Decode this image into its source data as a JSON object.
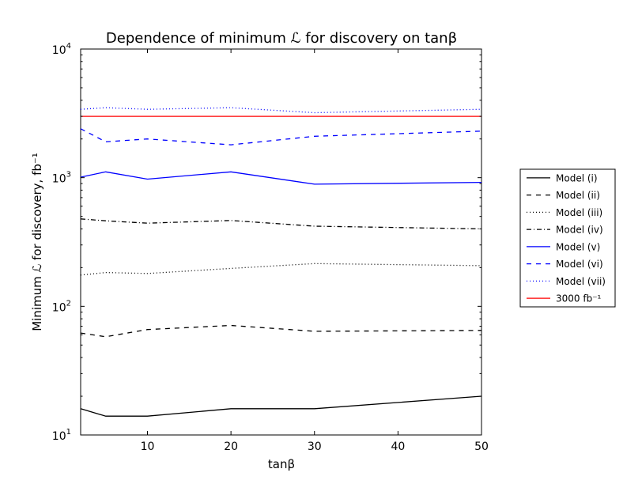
{
  "chart_data": {
    "type": "line",
    "title": "Dependence of minimum ℒ for discovery on tanβ",
    "xlabel": "tanβ",
    "ylabel": "Minimum ℒ for discovery, fb⁻¹",
    "xlim": [
      2,
      50
    ],
    "ylim": [
      10,
      10000
    ],
    "yscale": "log",
    "xticks": [
      10,
      20,
      30,
      40,
      50
    ],
    "yticks": [
      {
        "value": 10,
        "base": "10",
        "exp": "1"
      },
      {
        "value": 100,
        "base": "10",
        "exp": "2"
      },
      {
        "value": 1000,
        "base": "10",
        "exp": "3"
      },
      {
        "value": 10000,
        "base": "10",
        "exp": "4"
      }
    ],
    "legend_position": "right, outside plot",
    "series": [
      {
        "name": "Model (i)",
        "color": "#000000",
        "dash": "solid",
        "x": [
          2,
          5,
          10,
          20,
          30,
          50
        ],
        "y": [
          16,
          14,
          14,
          16,
          16,
          20
        ]
      },
      {
        "name": "Model (ii)",
        "color": "#000000",
        "dash": "dashed",
        "x": [
          2,
          5,
          10,
          20,
          30,
          50
        ],
        "y": [
          62,
          58,
          66,
          71,
          64,
          65
        ]
      },
      {
        "name": "Model (iii)",
        "color": "#000000",
        "dash": "dotted",
        "x": [
          2,
          5,
          10,
          20,
          30,
          50
        ],
        "y": [
          175,
          183,
          180,
          197,
          215,
          207
        ]
      },
      {
        "name": "Model (iv)",
        "color": "#000000",
        "dash": "dashdot",
        "x": [
          2,
          5,
          10,
          20,
          30,
          50
        ],
        "y": [
          478,
          462,
          443,
          465,
          420,
          400
        ]
      },
      {
        "name": "Model (v)",
        "color": "#0000ff",
        "dash": "solid",
        "x": [
          2,
          5,
          10,
          20,
          30,
          50
        ],
        "y": [
          1010,
          1110,
          975,
          1110,
          890,
          920
        ]
      },
      {
        "name": "Model (vi)",
        "color": "#0000ff",
        "dash": "dashed",
        "x": [
          2,
          5,
          10,
          20,
          30,
          50
        ],
        "y": [
          2400,
          1900,
          2000,
          1800,
          2100,
          2300
        ]
      },
      {
        "name": "Model (vii)",
        "color": "#0000ff",
        "dash": "dotted",
        "x": [
          2,
          5,
          10,
          20,
          30,
          50
        ],
        "y": [
          3400,
          3500,
          3400,
          3500,
          3200,
          3400
        ]
      },
      {
        "name": "3000 fb⁻¹",
        "color": "#ff0000",
        "dash": "solid",
        "x": [
          2,
          50
        ],
        "y": [
          3000,
          3000
        ]
      }
    ]
  }
}
